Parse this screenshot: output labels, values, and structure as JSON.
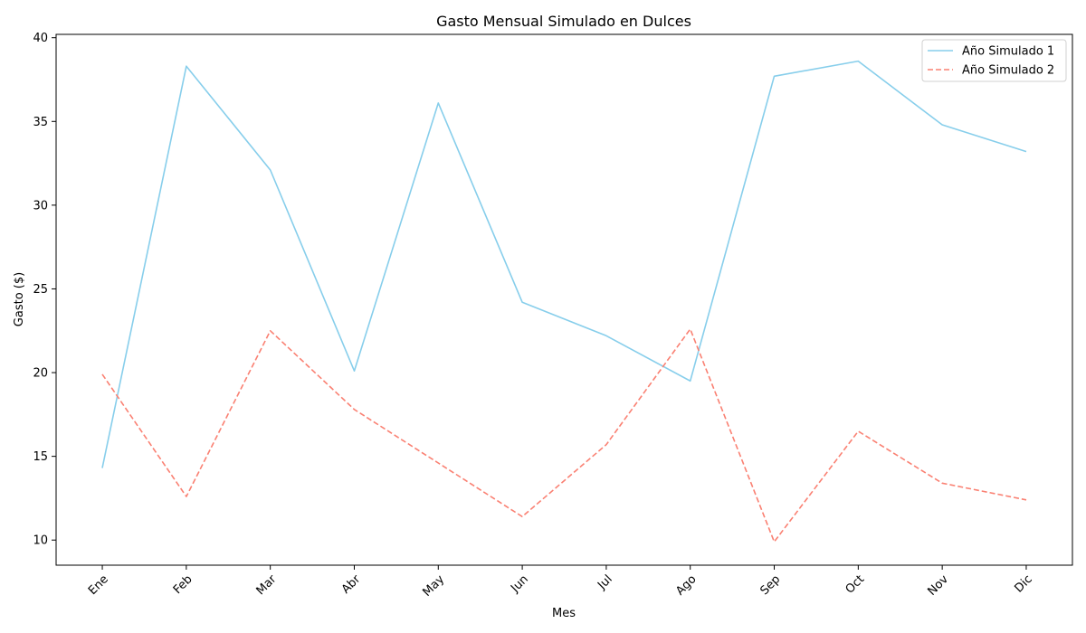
{
  "chart_data": {
    "type": "line",
    "title": "Gasto Mensual Simulado en Dulces",
    "xlabel": "Mes",
    "ylabel": "Gasto ($)",
    "categories": [
      "Ene",
      "Feb",
      "Mar",
      "Abr",
      "May",
      "Jun",
      "Jul",
      "Ago",
      "Sep",
      "Oct",
      "Nov",
      "Dic"
    ],
    "ylim": [
      8.5,
      40.2
    ],
    "yticks": [
      10,
      15,
      20,
      25,
      30,
      35,
      40
    ],
    "grid": false,
    "legend_position": "top-right",
    "series": [
      {
        "name": "Año Simulado 1",
        "color": "#87CEEB",
        "dash": "solid",
        "values": [
          14.3,
          38.3,
          32.1,
          20.1,
          36.1,
          24.2,
          22.2,
          19.5,
          37.7,
          38.6,
          34.8,
          33.2
        ]
      },
      {
        "name": "Año Simulado 2",
        "color": "#FA8072",
        "dash": "dashed",
        "values": [
          19.9,
          12.6,
          22.5,
          17.8,
          14.6,
          11.4,
          15.7,
          22.6,
          9.9,
          16.5,
          13.4,
          12.4
        ]
      }
    ]
  }
}
